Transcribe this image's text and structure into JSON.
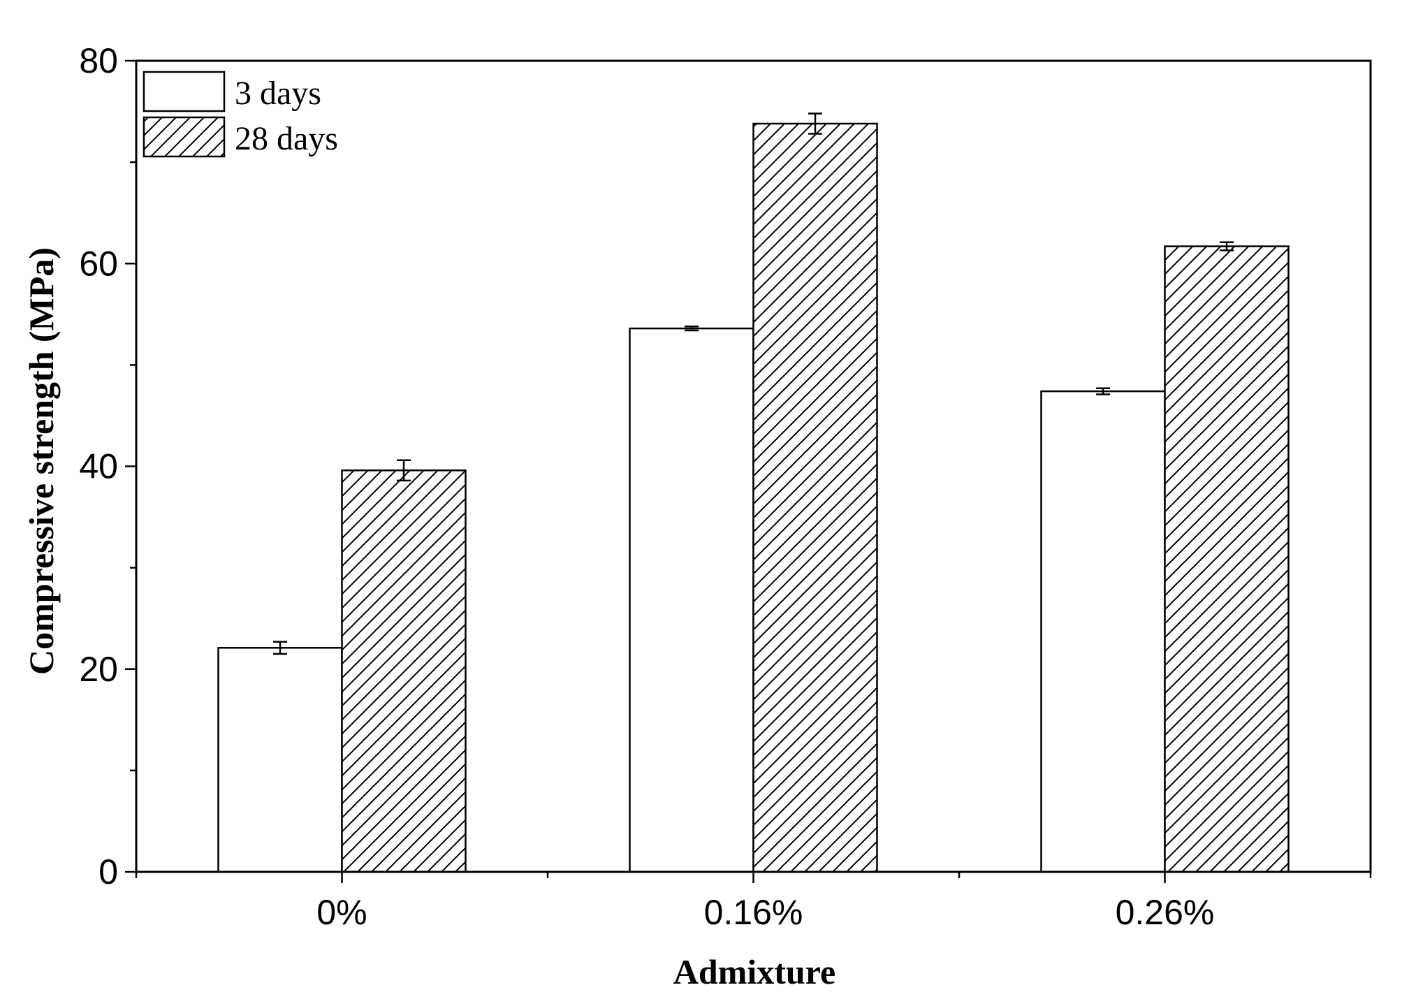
{
  "chart_data": {
    "type": "bar",
    "xlabel": "Admixture",
    "ylabel": "Compressive strength (MPa)",
    "categories": [
      "0%",
      "0.16%",
      "0.26%"
    ],
    "ylim": [
      0,
      80
    ],
    "yticks": [
      0,
      20,
      40,
      60,
      80
    ],
    "grid": false,
    "legend_position": "top-left",
    "series": [
      {
        "name": "3 days",
        "pattern": "none",
        "values": [
          22.1,
          53.6,
          47.4
        ],
        "errors": [
          0.6,
          0.2,
          0.3
        ]
      },
      {
        "name": "28 days",
        "pattern": "diagonal-hatch",
        "values": [
          39.6,
          73.8,
          61.7
        ],
        "errors": [
          1.0,
          1.0,
          0.4
        ]
      }
    ]
  }
}
